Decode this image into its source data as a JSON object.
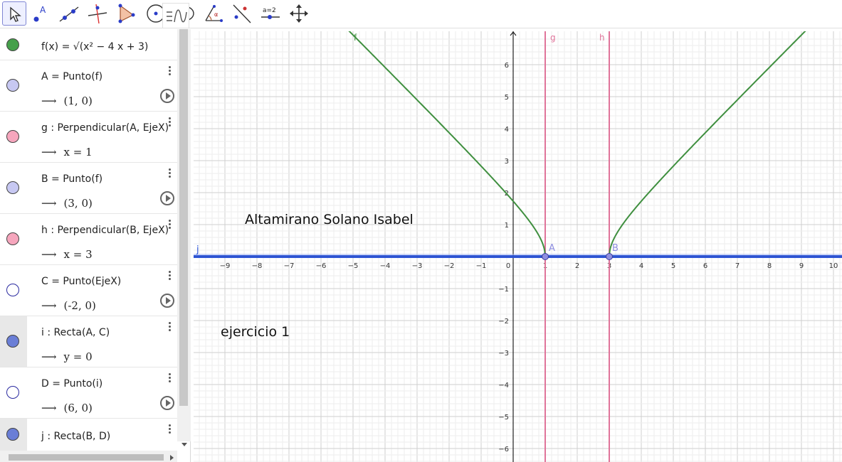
{
  "toolbar": {
    "tools": [
      {
        "name": "move-tool-icon",
        "active": true
      },
      {
        "name": "point-tool-icon",
        "label": "A"
      },
      {
        "name": "line-tool-icon"
      },
      {
        "name": "perpendicular-line-tool-icon"
      },
      {
        "name": "polygon-tool-icon"
      },
      {
        "name": "circle-center-point-tool-icon"
      },
      {
        "name": "ellipse-tool-icon"
      },
      {
        "name": "angle-tool-icon"
      },
      {
        "name": "reflect-tool-icon"
      },
      {
        "name": "slider-tool-icon",
        "label": "a=2"
      },
      {
        "name": "move-graphics-view-tool-icon"
      }
    ]
  },
  "algebra": {
    "rows": [
      {
        "id": "f",
        "def": "f(x) = √(x² − 4 x + 3)",
        "color": "#46a04b",
        "filled": true
      },
      {
        "id": "A",
        "def": "A = Punto(f)",
        "value": "(1, 0)",
        "color": "#c7c8f2",
        "filled": true,
        "play": true
      },
      {
        "id": "g",
        "def": "g : Perpendicular(A, EjeX)",
        "value": "x = 1",
        "color": "#f6a6bd",
        "filled": true
      },
      {
        "id": "B",
        "def": "B = Punto(f)",
        "value": "(3, 0)",
        "color": "#c7c8f2",
        "filled": true,
        "play": true
      },
      {
        "id": "h",
        "def": "h : Perpendicular(B, EjeX)",
        "value": "x = 3",
        "color": "#f6a6bd",
        "filled": true
      },
      {
        "id": "C",
        "def": "C = Punto(EjeX)",
        "value": "(-2, 0)",
        "color": "#ffffff",
        "filled": false,
        "play": true
      },
      {
        "id": "i",
        "def": "i : Recta(A, C)",
        "value": "y = 0",
        "color": "#6a7ed6",
        "filled": true,
        "shade": true
      },
      {
        "id": "D",
        "def": "D = Punto(i)",
        "value": "(6, 0)",
        "color": "#ffffff",
        "filled": false,
        "play": true
      },
      {
        "id": "j",
        "def": "j : Recta(B, D)",
        "color": "#6a7ed6",
        "filled": true,
        "shade": true
      }
    ],
    "arrow": "⟶"
  },
  "graphics": {
    "x_ticks": [
      "-9",
      "-8",
      "-7",
      "-6",
      "-5",
      "-4",
      "-3",
      "-2",
      "-1",
      "0",
      "1",
      "2",
      "3",
      "4",
      "5",
      "6",
      "7",
      "8",
      "9",
      "10"
    ],
    "y_ticks": [
      "6",
      "5",
      "4",
      "3",
      "2",
      "1",
      "-1",
      "-2",
      "-3",
      "-4",
      "-5",
      "-6"
    ],
    "x_range": [
      -9.9,
      10.3
    ],
    "y_range": [
      -6.5,
      7.0
    ],
    "labels": {
      "f": "f",
      "g": "g",
      "h": "h",
      "j": "j",
      "A": "A",
      "B": "B"
    },
    "colors": {
      "curve": "#3f8f3f",
      "perp": "#e0749a",
      "line": "#2a52d6",
      "point": "#8e8ee0"
    },
    "texts": {
      "name": "Altamirano Solano Isabel",
      "exercise": "ejercicio 1"
    }
  }
}
